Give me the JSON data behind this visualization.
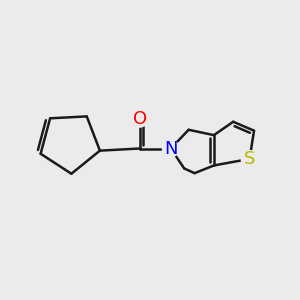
{
  "bg_color": "#ebebeb",
  "bond_color": "#1a1a1a",
  "O_color": "#ff0000",
  "N_color": "#0000ff",
  "S_color": "#b8b800",
  "lw": 1.8,
  "fig_size": [
    3.0,
    3.0
  ],
  "dpi": 100,
  "xlim": [
    0,
    10
  ],
  "ylim": [
    0,
    10
  ]
}
